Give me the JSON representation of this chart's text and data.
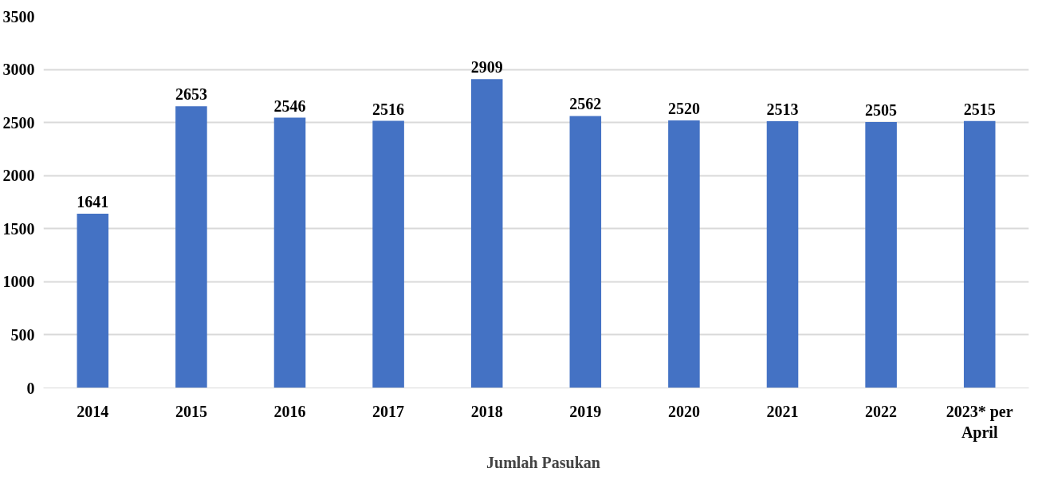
{
  "chart_data": {
    "type": "bar",
    "categories": [
      "2014",
      "2015",
      "2016",
      "2017",
      "2018",
      "2019",
      "2020",
      "2021",
      "2022",
      "2023* per April"
    ],
    "series": [
      {
        "name": "Jumlah Pasukan",
        "color": "#4472c4",
        "values": [
          1641,
          2653,
          2546,
          2516,
          2909,
          2562,
          2520,
          2513,
          2505,
          2515
        ]
      }
    ],
    "ylim": [
      0,
      3500
    ],
    "yticks": [
      0,
      500,
      1000,
      1500,
      2000,
      2500,
      3000,
      3500
    ],
    "grid": "y",
    "legend": "bottom",
    "data_labels": true
  }
}
